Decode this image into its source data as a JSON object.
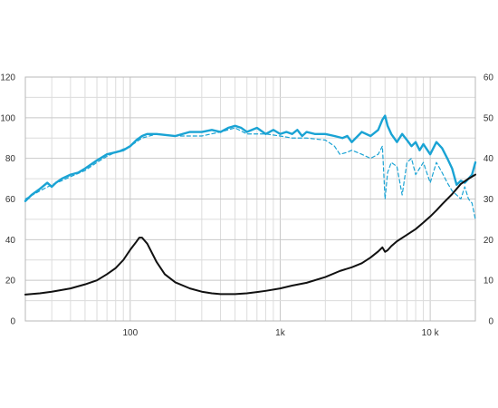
{
  "chart_data": {
    "type": "line",
    "x_scale": "log",
    "xlim": [
      20,
      20000
    ],
    "ylim_left": [
      0,
      120
    ],
    "ylim_right": [
      0,
      60
    ],
    "x_ticks": [
      {
        "value": 100,
        "label": "100"
      },
      {
        "value": 1000,
        "label": "1k"
      },
      {
        "value": 10000,
        "label": "10 k"
      }
    ],
    "y_ticks_left": [
      {
        "value": 0,
        "label": "0"
      },
      {
        "value": 20,
        "label": "20"
      },
      {
        "value": 40,
        "label": "40"
      },
      {
        "value": 60,
        "label": "60"
      },
      {
        "value": 80,
        "label": "80"
      },
      {
        "value": 100,
        "label": "100"
      },
      {
        "value": 120,
        "label": "120"
      }
    ],
    "y_ticks_right": [
      {
        "value": 0,
        "label": "0"
      },
      {
        "value": 10,
        "label": "10"
      },
      {
        "value": 20,
        "label": "20"
      },
      {
        "value": 30,
        "label": "30"
      },
      {
        "value": 40,
        "label": "40"
      },
      {
        "value": 50,
        "label": "50"
      },
      {
        "value": 60,
        "label": "60"
      }
    ],
    "grid": true,
    "series": [
      {
        "axis": "left",
        "color": "#1aa3d4",
        "style": "solid",
        "x": [
          20,
          22,
          25,
          28,
          30,
          32,
          35,
          40,
          45,
          50,
          60,
          70,
          80,
          90,
          100,
          110,
          120,
          130,
          150,
          200,
          250,
          300,
          350,
          400,
          450,
          500,
          550,
          600,
          700,
          800,
          900,
          1000,
          1100,
          1200,
          1300,
          1400,
          1500,
          1700,
          2000,
          2300,
          2600,
          2800,
          3000,
          3500,
          4000,
          4500,
          4800,
          5000,
          5200,
          5500,
          6000,
          6500,
          7000,
          7500,
          8000,
          8500,
          9000,
          10000,
          11000,
          12000,
          13000,
          14000,
          15000,
          16000,
          17000,
          18000,
          19000,
          20000
        ],
        "y": [
          59,
          62,
          65,
          68,
          66,
          68,
          70,
          72,
          73,
          75,
          79,
          82,
          83,
          84,
          86,
          89,
          91,
          92,
          92,
          91,
          93,
          93,
          94,
          93,
          95,
          96,
          95,
          93,
          95,
          92,
          94,
          92,
          93,
          92,
          94,
          91,
          93,
          92,
          92,
          91,
          90,
          91,
          88,
          93,
          91,
          94,
          99,
          101,
          96,
          92,
          88,
          92,
          89,
          86,
          88,
          84,
          87,
          82,
          88,
          85,
          80,
          75,
          67,
          69,
          68,
          70,
          72,
          78
        ]
      },
      {
        "axis": "left",
        "color": "#1aa3d4",
        "style": "dashed",
        "x": [
          20,
          25,
          30,
          35,
          40,
          50,
          60,
          70,
          80,
          100,
          120,
          150,
          200,
          300,
          400,
          500,
          600,
          800,
          1000,
          1200,
          1500,
          2000,
          2300,
          2500,
          2800,
          3000,
          3500,
          4000,
          4500,
          4800,
          5000,
          5200,
          5500,
          6000,
          6500,
          7000,
          7500,
          8000,
          9000,
          10000,
          11000,
          12000,
          13000,
          14000,
          15000,
          16000,
          17000,
          18000,
          19000,
          20000
        ],
        "y": [
          60,
          64,
          67,
          69,
          71,
          74,
          78,
          81,
          83,
          86,
          90,
          92,
          91,
          91,
          93,
          95,
          92,
          92,
          91,
          90,
          90,
          89,
          86,
          82,
          83,
          84,
          82,
          80,
          82,
          86,
          60,
          73,
          78,
          76,
          62,
          78,
          80,
          72,
          78,
          68,
          78,
          73,
          68,
          64,
          62,
          60,
          66,
          60,
          58,
          50
        ]
      },
      {
        "axis": "right",
        "color": "#111111",
        "style": "solid",
        "x": [
          20,
          25,
          30,
          40,
          50,
          60,
          70,
          80,
          90,
          100,
          110,
          115,
          120,
          130,
          150,
          170,
          200,
          250,
          300,
          350,
          400,
          500,
          600,
          700,
          800,
          1000,
          1200,
          1500,
          2000,
          2500,
          3000,
          3500,
          4000,
          4500,
          4800,
          5000,
          5200,
          5500,
          6000,
          7000,
          8000,
          9000,
          10000,
          11000,
          12000,
          14000,
          16000,
          18000,
          20000
        ],
        "y": [
          6.5,
          6.8,
          7.2,
          8,
          9,
          10,
          11.5,
          13,
          15,
          17.5,
          19.5,
          20.5,
          20.5,
          19,
          14.5,
          11.5,
          9.5,
          8,
          7.2,
          6.8,
          6.6,
          6.6,
          6.8,
          7.1,
          7.4,
          8,
          8.7,
          9.4,
          10.8,
          12.3,
          13.2,
          14.2,
          15.6,
          17.1,
          18.1,
          17,
          17.4,
          18.4,
          19.6,
          21.2,
          22.6,
          24.2,
          25.7,
          27.2,
          28.7,
          31.2,
          33.7,
          35,
          36
        ]
      }
    ]
  }
}
